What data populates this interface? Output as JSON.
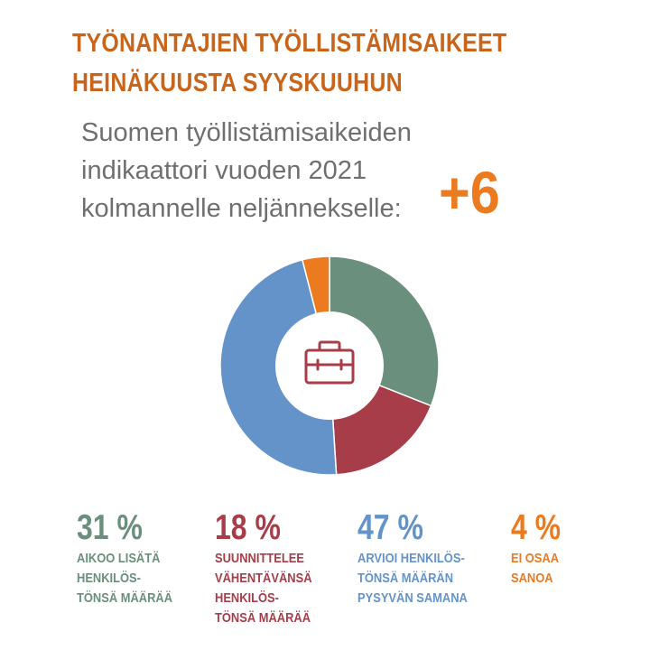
{
  "title": {
    "line1": "TYÖNANTAJIEN TYÖLLISTÄMISAIKEET",
    "line2": "HEINÄKUUSTA SYYSKUUHUN"
  },
  "subtitle": {
    "line1": "Suomen työllistämisaikeiden",
    "line2": "indikaattori vuoden 2021",
    "line3": "kolmannelle neljännekselle:"
  },
  "indicator": "+6",
  "center_icon": "briefcase-icon",
  "chart_data": {
    "type": "pie",
    "donut": true,
    "slices": [
      {
        "value": 31,
        "pct_label": "31 %",
        "label": "AIKOO LISÄTÄ\nHENKILÖS-\nTÖNSÄ MÄÄRÄÄ",
        "color": "#6a8f7c"
      },
      {
        "value": 18,
        "pct_label": "18 %",
        "label": "SUUNNITTELEE\nVÄHENTÄVÄNSÄ\nHENKILÖS-\nTÖNSÄ MÄÄRÄÄ",
        "color": "#a83d4a"
      },
      {
        "value": 47,
        "pct_label": "47 %",
        "label": "ARVIOI HENKILÖS-\nTÖNSÄ MÄÄRÄN\nPYSYVÄN SAMANA",
        "color": "#6393c9"
      },
      {
        "value": 4,
        "pct_label": "4 %",
        "label": "EI OSAA\nSANOA",
        "color": "#ec7a1f"
      }
    ],
    "start_angle_deg": 0,
    "direction": "clockwise"
  }
}
